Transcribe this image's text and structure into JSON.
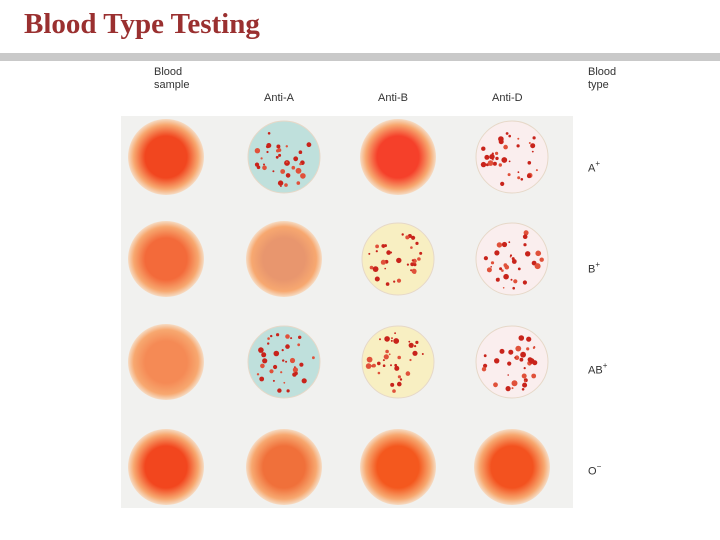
{
  "title": "Blood Type Testing",
  "headers": {
    "blood_sample": "Blood\nsample",
    "anti_a": "Anti-A",
    "anti_b": "Anti-B",
    "anti_d": "Anti-D",
    "blood_type": "Blood\ntype"
  },
  "rows": [
    {
      "label": "A",
      "rh": "+",
      "results": [
        "sample",
        "agglutinated",
        "uniform",
        "agglutinated"
      ],
      "spot_colors": [
        "#f1461f",
        "#bfe0dc",
        "#f5402a",
        "#faeeee"
      ]
    },
    {
      "label": "B",
      "rh": "+",
      "results": [
        "sample",
        "uniform",
        "agglutinated",
        "agglutinated"
      ],
      "spot_colors": [
        "#f36a3a",
        "#e8966e",
        "#f8efc2",
        "#faeeee"
      ]
    },
    {
      "label": "AB",
      "rh": "+",
      "results": [
        "sample",
        "agglutinated",
        "agglutinated",
        "agglutinated"
      ],
      "spot_colors": [
        "#f58a55",
        "#bfe0dc",
        "#f8efc2",
        "#faeeee"
      ]
    },
    {
      "label": "O",
      "rh": "−",
      "results": [
        "sample",
        "uniform",
        "uniform",
        "uniform"
      ],
      "spot_colors": [
        "#f2461e",
        "#f0703a",
        "#f4581e",
        "#f3521f"
      ]
    }
  ]
}
